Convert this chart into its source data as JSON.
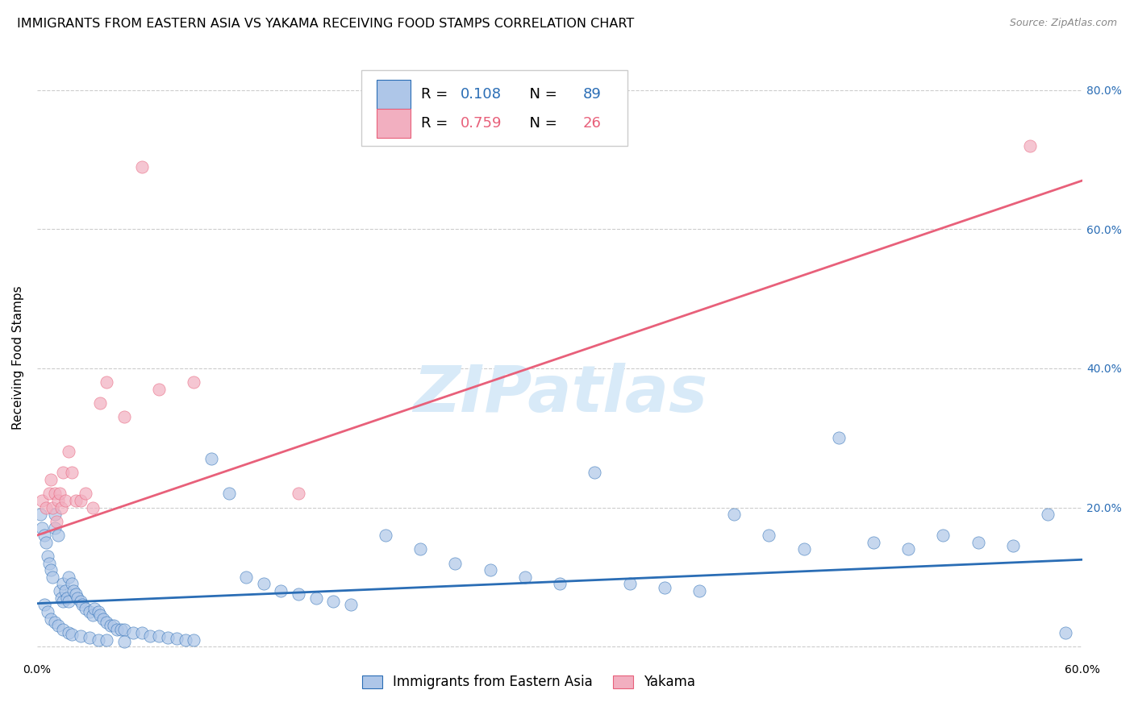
{
  "title": "IMMIGRANTS FROM EASTERN ASIA VS YAKAMA RECEIVING FOOD STAMPS CORRELATION CHART",
  "source": "Source: ZipAtlas.com",
  "ylabel": "Receiving Food Stamps",
  "xlabel": "",
  "xlim": [
    0.0,
    0.6
  ],
  "ylim": [
    -0.02,
    0.85
  ],
  "ytick_positions": [
    0.0,
    0.2,
    0.4,
    0.6,
    0.8
  ],
  "xtick_vals": [
    0.0,
    0.1,
    0.2,
    0.3,
    0.4,
    0.5,
    0.6
  ],
  "xtick_labels": [
    "0.0%",
    "",
    "",
    "",
    "",
    "",
    "60.0%"
  ],
  "ytick_labels_right": [
    "",
    "20.0%",
    "40.0%",
    "60.0%",
    "80.0%"
  ],
  "blue_R": 0.108,
  "blue_N": 89,
  "pink_R": 0.759,
  "pink_N": 26,
  "blue_color": "#aec6e8",
  "pink_color": "#f2afc0",
  "blue_line_color": "#2a6db5",
  "pink_line_color": "#e8607a",
  "watermark": "ZIPatlas",
  "watermark_color": "#d8eaf8",
  "blue_scatter_x": [
    0.002,
    0.003,
    0.004,
    0.005,
    0.006,
    0.007,
    0.008,
    0.009,
    0.01,
    0.01,
    0.012,
    0.013,
    0.014,
    0.015,
    0.015,
    0.016,
    0.017,
    0.018,
    0.018,
    0.02,
    0.021,
    0.022,
    0.023,
    0.025,
    0.026,
    0.028,
    0.03,
    0.032,
    0.033,
    0.035,
    0.036,
    0.038,
    0.04,
    0.042,
    0.044,
    0.046,
    0.048,
    0.05,
    0.055,
    0.06,
    0.065,
    0.07,
    0.075,
    0.08,
    0.085,
    0.09,
    0.1,
    0.11,
    0.12,
    0.13,
    0.14,
    0.15,
    0.16,
    0.17,
    0.18,
    0.2,
    0.22,
    0.24,
    0.26,
    0.28,
    0.3,
    0.32,
    0.34,
    0.36,
    0.38,
    0.4,
    0.42,
    0.44,
    0.46,
    0.48,
    0.5,
    0.52,
    0.54,
    0.56,
    0.58,
    0.004,
    0.006,
    0.008,
    0.01,
    0.012,
    0.015,
    0.018,
    0.02,
    0.025,
    0.03,
    0.035,
    0.04,
    0.05,
    0.59
  ],
  "blue_scatter_y": [
    0.19,
    0.17,
    0.16,
    0.15,
    0.13,
    0.12,
    0.11,
    0.1,
    0.19,
    0.17,
    0.16,
    0.08,
    0.07,
    0.065,
    0.09,
    0.08,
    0.07,
    0.065,
    0.1,
    0.09,
    0.08,
    0.075,
    0.07,
    0.065,
    0.06,
    0.055,
    0.05,
    0.045,
    0.055,
    0.05,
    0.045,
    0.04,
    0.035,
    0.03,
    0.03,
    0.025,
    0.025,
    0.025,
    0.02,
    0.02,
    0.015,
    0.015,
    0.013,
    0.012,
    0.01,
    0.01,
    0.27,
    0.22,
    0.1,
    0.09,
    0.08,
    0.075,
    0.07,
    0.065,
    0.06,
    0.16,
    0.14,
    0.12,
    0.11,
    0.1,
    0.09,
    0.25,
    0.09,
    0.085,
    0.08,
    0.19,
    0.16,
    0.14,
    0.3,
    0.15,
    0.14,
    0.16,
    0.15,
    0.145,
    0.19,
    0.06,
    0.05,
    0.04,
    0.035,
    0.03,
    0.025,
    0.02,
    0.018,
    0.015,
    0.013,
    0.01,
    0.009,
    0.007,
    0.02
  ],
  "pink_scatter_x": [
    0.003,
    0.005,
    0.007,
    0.008,
    0.009,
    0.01,
    0.011,
    0.012,
    0.013,
    0.014,
    0.015,
    0.016,
    0.018,
    0.02,
    0.022,
    0.025,
    0.028,
    0.032,
    0.036,
    0.04,
    0.05,
    0.06,
    0.07,
    0.09,
    0.15,
    0.57
  ],
  "pink_scatter_y": [
    0.21,
    0.2,
    0.22,
    0.24,
    0.2,
    0.22,
    0.18,
    0.21,
    0.22,
    0.2,
    0.25,
    0.21,
    0.28,
    0.25,
    0.21,
    0.21,
    0.22,
    0.2,
    0.35,
    0.38,
    0.33,
    0.69,
    0.37,
    0.38,
    0.22,
    0.72
  ],
  "blue_trend_x": [
    0.0,
    0.6
  ],
  "blue_trend_y": [
    0.062,
    0.125
  ],
  "pink_trend_x": [
    0.0,
    0.6
  ],
  "pink_trend_y": [
    0.16,
    0.67
  ]
}
